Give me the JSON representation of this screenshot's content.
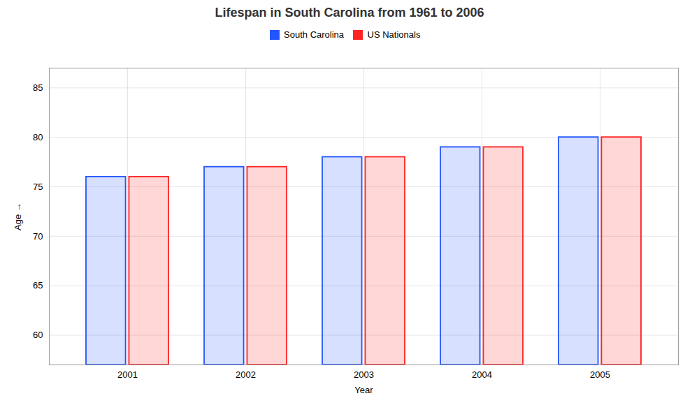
{
  "chart_data": {
    "type": "bar",
    "title": "Lifespan in South Carolina from 1961 to 2006",
    "xlabel": "Year",
    "ylabel": "Age",
    "categories": [
      "2001",
      "2002",
      "2003",
      "2004",
      "2005"
    ],
    "series": [
      {
        "name": "South Carolina",
        "color": "#2255ff",
        "values": [
          76,
          77,
          78,
          79,
          80
        ]
      },
      {
        "name": "US Nationals",
        "color": "#ff2222",
        "values": [
          76,
          77,
          78,
          79,
          80
        ]
      }
    ],
    "ylim": [
      57,
      87
    ],
    "yticks": [
      60,
      65,
      70,
      75,
      80,
      85
    ],
    "grid": true,
    "legend": "top"
  }
}
